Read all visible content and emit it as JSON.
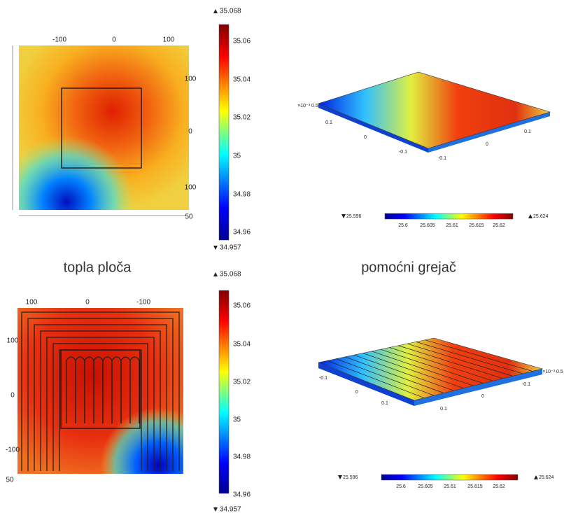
{
  "panels": [
    {
      "top_axis": [
        "-100",
        "0",
        "100"
      ],
      "side_axis": [
        "100",
        "0",
        "100"
      ],
      "corner": "50",
      "colorbar": {
        "max": "35.068",
        "min": "34.957",
        "ticks": [
          "35.06",
          "35.04",
          "35.02",
          "35",
          "34.98",
          "34.96"
        ]
      }
    },
    {
      "axis_labels": [
        "×10⁻³ 0.5",
        "0.1",
        "0",
        "-0.1",
        "-0.1",
        "0",
        "0.1"
      ],
      "colorbar": {
        "min": "25.596",
        "max": "25.624",
        "ticks": [
          "25.6",
          "25.605",
          "25.61",
          "25.615",
          "25.62"
        ]
      }
    },
    {
      "top_axis": [
        "100",
        "0",
        "-100"
      ],
      "side_axis": [
        "100",
        "0",
        "-100"
      ],
      "corner": "50",
      "colorbar": {
        "max": "35.068",
        "min": "34.957",
        "ticks": [
          "35.06",
          "35.04",
          "35.02",
          "35",
          "34.98",
          "34.96"
        ]
      }
    },
    {
      "axis_labels": [
        "×10⁻³ 0.5",
        "-0.1",
        "0",
        "0.1",
        "0.1",
        "0",
        "-0.1"
      ],
      "colorbar": {
        "min": "25.596",
        "max": "25.624",
        "ticks": [
          "25.6",
          "25.605",
          "25.61",
          "25.615",
          "25.62"
        ]
      }
    }
  ],
  "captions": [
    "topla ploča",
    "pomoćni grejač"
  ]
}
